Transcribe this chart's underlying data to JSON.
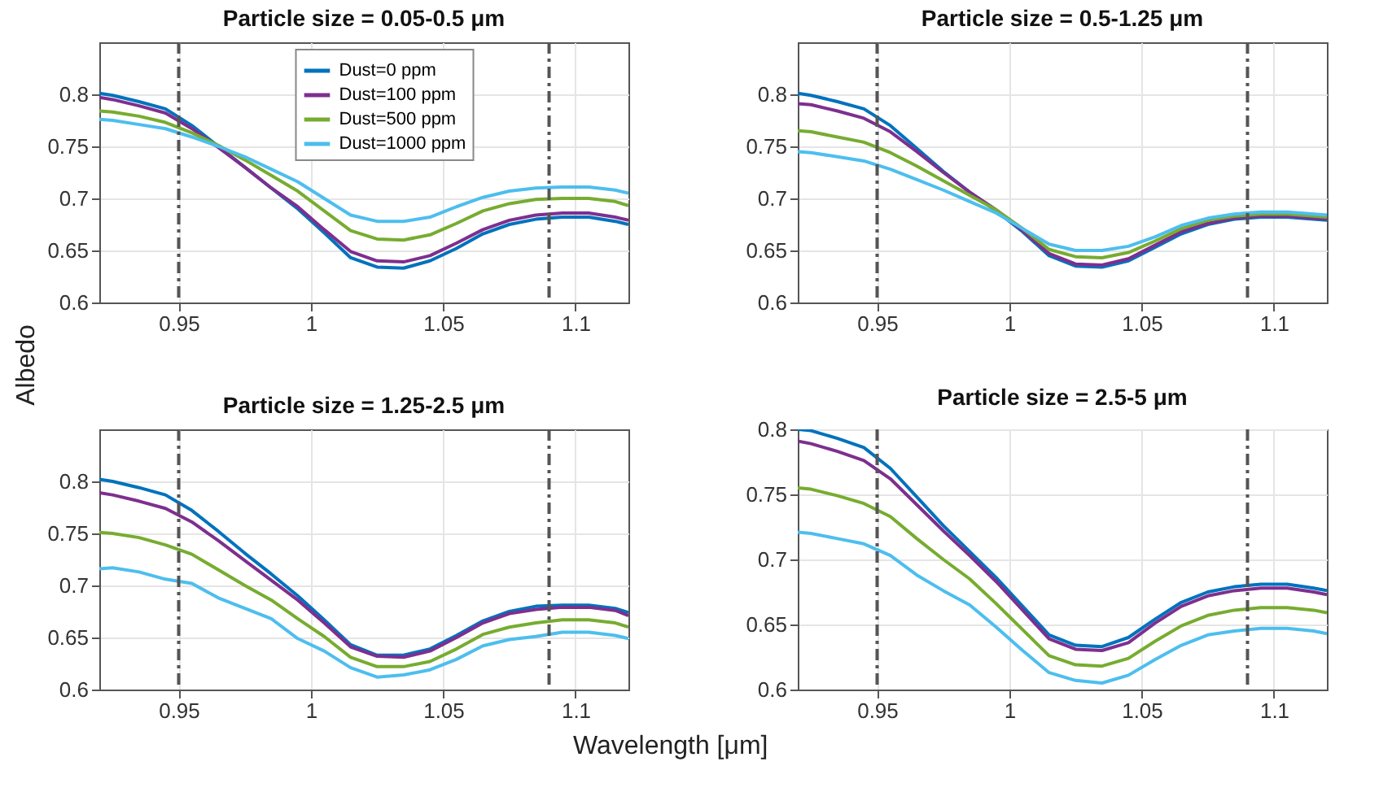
{
  "chart_data": [
    {
      "type": "line",
      "title": "Particle size = 0.05-0.5 μm",
      "ylabel": "Albedo",
      "x": [
        0.92,
        0.925,
        0.935,
        0.945,
        0.955,
        0.965,
        0.975,
        0.985,
        0.995,
        1.005,
        1.015,
        1.025,
        1.035,
        1.045,
        1.055,
        1.065,
        1.075,
        1.085,
        1.095,
        1.105,
        1.115,
        1.12
      ],
      "xlim": [
        0.92,
        1.12
      ],
      "xticks": [
        0.95,
        1,
        1.05,
        1.1
      ],
      "ylim": [
        0.6,
        0.85
      ],
      "yticks": [
        0.6,
        0.65,
        0.7,
        0.75,
        0.8
      ],
      "grid": true,
      "legend": "top",
      "line_style": "solid",
      "series": [
        {
          "name": "Dust=0 ppm",
          "color": "#0072bd",
          "values": [
            0.801,
            0.799,
            0.793,
            0.786,
            0.77,
            0.75,
            0.73,
            0.71,
            0.69,
            0.667,
            0.643,
            0.634,
            0.633,
            0.64,
            0.652,
            0.666,
            0.675,
            0.68,
            0.682,
            0.682,
            0.678,
            0.675
          ]
        },
        {
          "name": "Dust=100 ppm",
          "color": "#7e2f8e",
          "values": [
            0.797,
            0.795,
            0.789,
            0.782,
            0.767,
            0.749,
            0.73,
            0.71,
            0.692,
            0.67,
            0.649,
            0.64,
            0.639,
            0.645,
            0.657,
            0.67,
            0.679,
            0.684,
            0.686,
            0.686,
            0.682,
            0.679
          ]
        },
        {
          "name": "Dust=500 ppm",
          "color": "#77ac30",
          "values": [
            0.784,
            0.783,
            0.779,
            0.773,
            0.763,
            0.751,
            0.737,
            0.722,
            0.707,
            0.688,
            0.669,
            0.661,
            0.66,
            0.665,
            0.676,
            0.688,
            0.695,
            0.699,
            0.7,
            0.7,
            0.697,
            0.693
          ]
        },
        {
          "name": "Dust=1000 ppm",
          "color": "#4dbeee",
          "values": [
            0.776,
            0.775,
            0.771,
            0.767,
            0.759,
            0.75,
            0.74,
            0.728,
            0.716,
            0.7,
            0.684,
            0.678,
            0.678,
            0.682,
            0.692,
            0.701,
            0.707,
            0.71,
            0.711,
            0.711,
            0.708,
            0.705
          ]
        }
      ],
      "ref_lines": [
        {
          "axis": "x",
          "value": 0.95,
          "color": "#555555",
          "line_style": "dashed"
        },
        {
          "axis": "x",
          "value": 1.09,
          "color": "#555555",
          "line_style": "dashed"
        }
      ]
    },
    {
      "type": "line",
      "title": "Particle size = 0.5-1.25 μm",
      "x": [
        0.92,
        0.925,
        0.935,
        0.945,
        0.955,
        0.965,
        0.975,
        0.985,
        0.995,
        1.005,
        1.015,
        1.025,
        1.035,
        1.045,
        1.055,
        1.065,
        1.075,
        1.085,
        1.095,
        1.105,
        1.115,
        1.12
      ],
      "xlim": [
        0.92,
        1.12
      ],
      "xticks": [
        0.95,
        1,
        1.05,
        1.1
      ],
      "ylim": [
        0.6,
        0.85
      ],
      "yticks": [
        0.6,
        0.65,
        0.7,
        0.75,
        0.8
      ],
      "grid": true,
      "line_style": "solid",
      "series": [
        {
          "color": "#0072bd",
          "values": [
            0.801,
            0.799,
            0.793,
            0.786,
            0.77,
            0.748,
            0.726,
            0.706,
            0.688,
            0.668,
            0.645,
            0.635,
            0.634,
            0.64,
            0.653,
            0.666,
            0.675,
            0.68,
            0.682,
            0.682,
            0.68,
            0.679
          ]
        },
        {
          "color": "#7e2f8e",
          "values": [
            0.791,
            0.79,
            0.784,
            0.777,
            0.764,
            0.745,
            0.725,
            0.706,
            0.689,
            0.669,
            0.647,
            0.637,
            0.636,
            0.642,
            0.655,
            0.668,
            0.676,
            0.681,
            0.683,
            0.683,
            0.681,
            0.68
          ]
        },
        {
          "color": "#77ac30",
          "values": [
            0.765,
            0.764,
            0.759,
            0.754,
            0.744,
            0.731,
            0.717,
            0.703,
            0.689,
            0.671,
            0.651,
            0.644,
            0.643,
            0.648,
            0.659,
            0.671,
            0.679,
            0.683,
            0.685,
            0.685,
            0.683,
            0.682
          ]
        },
        {
          "color": "#4dbeee",
          "values": [
            0.745,
            0.744,
            0.74,
            0.736,
            0.728,
            0.718,
            0.708,
            0.697,
            0.686,
            0.671,
            0.656,
            0.65,
            0.65,
            0.654,
            0.663,
            0.674,
            0.681,
            0.685,
            0.687,
            0.687,
            0.685,
            0.684
          ]
        }
      ],
      "ref_lines": [
        {
          "axis": "x",
          "value": 0.95,
          "color": "#555555",
          "line_style": "dashed"
        },
        {
          "axis": "x",
          "value": 1.09,
          "color": "#555555",
          "line_style": "dashed"
        }
      ]
    },
    {
      "type": "line",
      "title": "Particle size = 1.25-2.5 μm",
      "xlabel": "Wavelength [μm]",
      "x": [
        0.92,
        0.925,
        0.935,
        0.945,
        0.955,
        0.965,
        0.975,
        0.985,
        0.995,
        1.005,
        1.015,
        1.025,
        1.035,
        1.045,
        1.055,
        1.065,
        1.075,
        1.085,
        1.095,
        1.105,
        1.115,
        1.12
      ],
      "xlim": [
        0.92,
        1.12
      ],
      "xticks": [
        0.95,
        1,
        1.05,
        1.1
      ],
      "ylim": [
        0.6,
        0.85
      ],
      "yticks": [
        0.6,
        0.65,
        0.7,
        0.75,
        0.8
      ],
      "grid": true,
      "line_style": "solid",
      "series": [
        {
          "color": "#0072bd",
          "values": [
            0.802,
            0.8,
            0.794,
            0.787,
            0.772,
            0.752,
            0.731,
            0.711,
            0.69,
            0.667,
            0.643,
            0.633,
            0.633,
            0.639,
            0.652,
            0.666,
            0.675,
            0.68,
            0.681,
            0.681,
            0.678,
            0.674
          ]
        },
        {
          "color": "#7e2f8e",
          "values": [
            0.789,
            0.787,
            0.781,
            0.774,
            0.761,
            0.743,
            0.724,
            0.705,
            0.686,
            0.664,
            0.641,
            0.632,
            0.631,
            0.637,
            0.65,
            0.664,
            0.673,
            0.677,
            0.679,
            0.679,
            0.676,
            0.671
          ]
        },
        {
          "color": "#77ac30",
          "values": [
            0.751,
            0.75,
            0.746,
            0.739,
            0.73,
            0.715,
            0.7,
            0.686,
            0.668,
            0.651,
            0.631,
            0.622,
            0.622,
            0.627,
            0.639,
            0.653,
            0.66,
            0.664,
            0.667,
            0.667,
            0.664,
            0.66
          ]
        },
        {
          "color": "#4dbeee",
          "values": [
            0.716,
            0.717,
            0.713,
            0.706,
            0.702,
            0.688,
            0.678,
            0.668,
            0.649,
            0.637,
            0.621,
            0.612,
            0.614,
            0.619,
            0.629,
            0.642,
            0.648,
            0.651,
            0.655,
            0.655,
            0.652,
            0.649
          ]
        }
      ],
      "ref_lines": [
        {
          "axis": "x",
          "value": 0.95,
          "color": "#555555",
          "line_style": "dashed"
        },
        {
          "axis": "x",
          "value": 1.09,
          "color": "#555555",
          "line_style": "dashed"
        }
      ]
    },
    {
      "type": "line",
      "title": "Particle size = 2.5-5 μm",
      "x": [
        0.92,
        0.925,
        0.935,
        0.945,
        0.955,
        0.965,
        0.975,
        0.985,
        0.995,
        1.005,
        1.015,
        1.025,
        1.035,
        1.045,
        1.055,
        1.065,
        1.075,
        1.085,
        1.095,
        1.105,
        1.115,
        1.12
      ],
      "xlim": [
        0.92,
        1.12
      ],
      "xticks": [
        0.95,
        1,
        1.05,
        1.1
      ],
      "ylim": [
        0.6,
        0.8
      ],
      "yticks": [
        0.6,
        0.65,
        0.7,
        0.75,
        0.8
      ],
      "grid": true,
      "line_style": "solid",
      "series": [
        {
          "color": "#0072bd",
          "values": [
            0.8,
            0.799,
            0.793,
            0.786,
            0.77,
            0.748,
            0.726,
            0.706,
            0.686,
            0.664,
            0.642,
            0.634,
            0.633,
            0.64,
            0.654,
            0.667,
            0.675,
            0.679,
            0.681,
            0.681,
            0.678,
            0.676
          ]
        },
        {
          "color": "#7e2f8e",
          "values": [
            0.791,
            0.789,
            0.783,
            0.776,
            0.762,
            0.742,
            0.722,
            0.703,
            0.683,
            0.661,
            0.639,
            0.631,
            0.63,
            0.636,
            0.651,
            0.664,
            0.672,
            0.676,
            0.678,
            0.678,
            0.675,
            0.673
          ]
        },
        {
          "color": "#77ac30",
          "values": [
            0.755,
            0.754,
            0.749,
            0.743,
            0.733,
            0.716,
            0.7,
            0.685,
            0.666,
            0.646,
            0.626,
            0.619,
            0.618,
            0.624,
            0.637,
            0.649,
            0.657,
            0.661,
            0.663,
            0.663,
            0.661,
            0.659
          ]
        },
        {
          "color": "#4dbeee",
          "values": [
            0.721,
            0.72,
            0.716,
            0.712,
            0.703,
            0.688,
            0.676,
            0.665,
            0.648,
            0.63,
            0.613,
            0.607,
            0.605,
            0.611,
            0.623,
            0.634,
            0.642,
            0.645,
            0.647,
            0.647,
            0.645,
            0.643
          ]
        }
      ],
      "ref_lines": [
        {
          "axis": "x",
          "value": 0.95,
          "color": "#555555",
          "line_style": "dashed"
        },
        {
          "axis": "x",
          "value": 1.09,
          "color": "#555555",
          "line_style": "dashed"
        }
      ]
    }
  ]
}
